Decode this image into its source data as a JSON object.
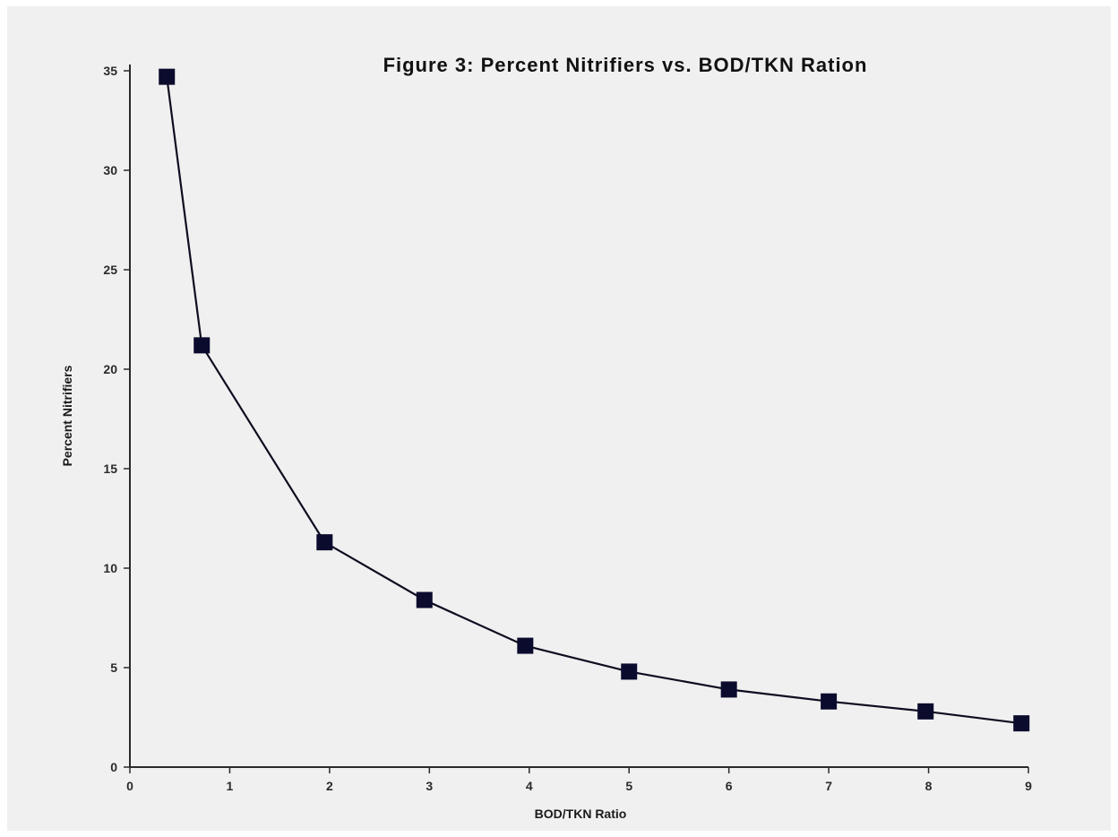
{
  "chart_data": {
    "type": "line",
    "title": "Figure 3:  Percent Nitrifiers vs. BOD/TKN Ration",
    "xlabel": "BOD/TKN Ratio",
    "ylabel": "Percent Nitrifiers",
    "xlim": [
      0,
      9
    ],
    "ylim": [
      0,
      35
    ],
    "xticks": [
      "0",
      "1",
      "2",
      "3",
      "4",
      "5",
      "6",
      "7",
      "8",
      "9"
    ],
    "yticks": [
      "0",
      "5",
      "10",
      "15",
      "20",
      "25",
      "30",
      "35"
    ],
    "grid": false,
    "marker": "square",
    "colors": {
      "series": "#0b0b2e",
      "background": "#f0f0f0",
      "axis": "#2a2a2a"
    },
    "series": [
      {
        "x": [
          0.37,
          0.72,
          1.95,
          2.95,
          3.96,
          5.0,
          6.0,
          7.0,
          7.97,
          8.93
        ],
        "y": [
          34.7,
          21.2,
          11.3,
          8.4,
          6.1,
          4.8,
          3.9,
          3.3,
          2.8,
          2.2
        ]
      }
    ]
  }
}
